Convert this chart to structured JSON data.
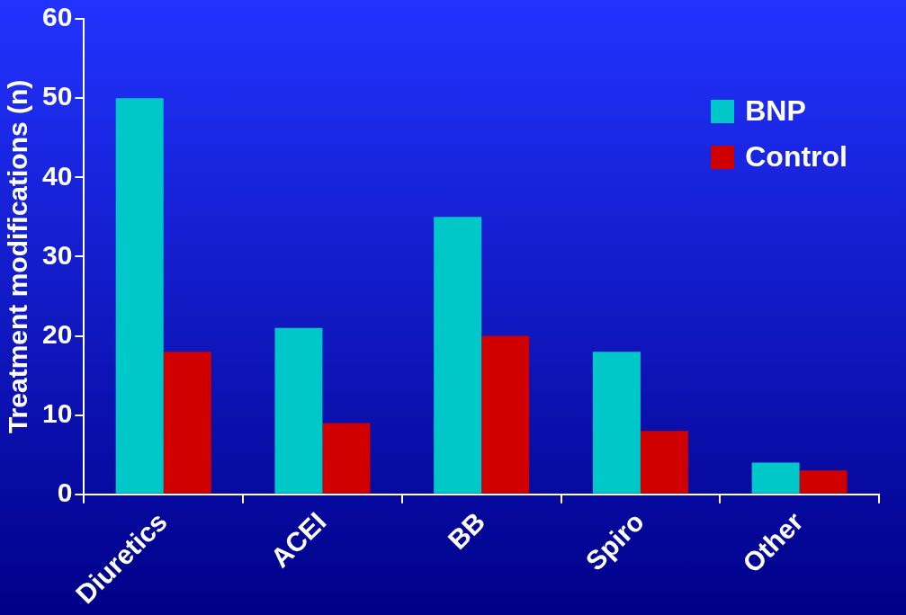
{
  "chart_data": {
    "type": "bar",
    "ylabel": "Treatment modifications (n)",
    "categories": [
      "Diuretics",
      "ACEI",
      "BB",
      "Spiro",
      "Other"
    ],
    "series": [
      {
        "name": "BNP",
        "color": "#00c8c8",
        "values": [
          50,
          21,
          35,
          18,
          4
        ]
      },
      {
        "name": "Control",
        "color": "#d00000",
        "values": [
          18,
          9,
          20,
          8,
          3
        ]
      }
    ],
    "ylim": [
      0,
      60
    ],
    "yticks": [
      0,
      10,
      20,
      30,
      40,
      50,
      60
    ],
    "grid": false,
    "legend": "top right"
  }
}
